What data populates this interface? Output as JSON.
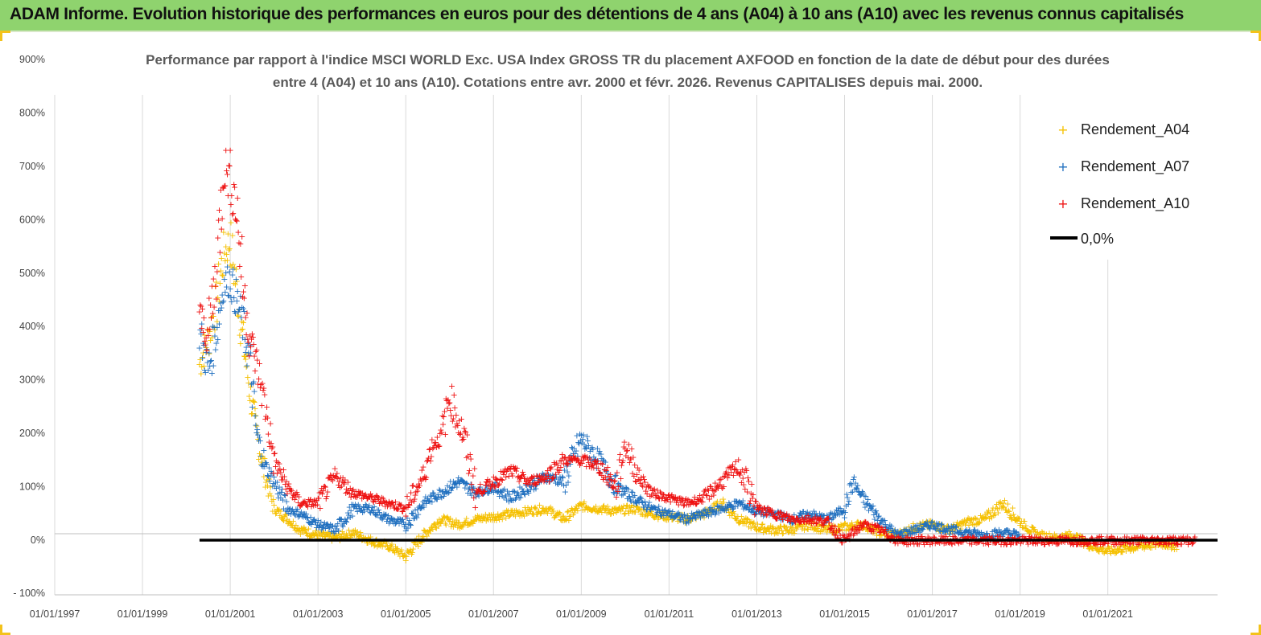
{
  "header": {
    "title": "ADAM Informe. Evolution historique des performances en euros pour des détentions de 4 ans (A04) à 10 ans (A10) avec les revenus connus capitalisés"
  },
  "colors": {
    "header_bg": "#8fd36e",
    "A04": "#f5c000",
    "A07": "#1f6fbf",
    "A10": "#ee1111",
    "zero_line": "#000000"
  },
  "chart_data": {
    "type": "scatter",
    "title_line1": "Performance par rapport à l'indice MSCI WORLD Exc. USA Index GROSS TR  du placement AXFOOD en fonction de la date de début pour des durées",
    "title_line2": "entre 4 (A04) et 10 ans (A10). Cotations entre avr. 2000 et févr. 2026. Revenus CAPITALISES depuis mai. 2000.",
    "y_ticks": [
      "900%",
      "800%",
      "700%",
      "600%",
      "500%",
      "400%",
      "300%",
      "200%",
      "100%",
      "0%",
      "- 100%"
    ],
    "x_ticks": [
      "01/01/1997",
      "01/01/1999",
      "01/01/2001",
      "01/01/2003",
      "01/01/2005",
      "01/01/2007",
      "01/01/2009",
      "01/01/2011",
      "01/01/2013",
      "01/01/2015",
      "01/01/2017",
      "01/01/2019",
      "01/01/2021"
    ],
    "ylim": [
      -100,
      900
    ],
    "xlim": [
      1997.0,
      2023.5
    ],
    "grid": "vertical",
    "legend_position": "top-right",
    "legend": [
      "Rendement_A04",
      "Rendement_A07",
      "Rendement_A10",
      "0,0%"
    ],
    "series": [
      {
        "name": "Rendement_A04",
        "color": "#f5c000",
        "x": [
          2000.3,
          2000.5,
          2000.7,
          2000.85,
          2001.0,
          2001.15,
          2001.3,
          2001.45,
          2001.6,
          2001.8,
          2002.0,
          2002.3,
          2002.6,
          2003.0,
          2003.4,
          2003.8,
          2004.2,
          2004.6,
          2005.0,
          2005.4,
          2005.8,
          2006.2,
          2006.6,
          2007.0,
          2007.4,
          2007.8,
          2008.2,
          2008.6,
          2009.0,
          2009.4,
          2009.8,
          2010.2,
          2010.6,
          2011.0,
          2011.4,
          2011.8,
          2012.2,
          2012.6,
          2013.0,
          2013.4,
          2013.8,
          2014.2,
          2014.6,
          2015.0,
          2015.4,
          2015.8,
          2016.2,
          2016.6,
          2017.0,
          2017.4,
          2017.8,
          2018.2,
          2018.6,
          2019.0,
          2019.4,
          2019.8,
          2020.2,
          2020.6,
          2021.0,
          2021.4,
          2021.8,
          2022.2,
          2022.6
        ],
        "y": [
          330,
          380,
          450,
          540,
          560,
          470,
          370,
          280,
          200,
          120,
          60,
          40,
          20,
          10,
          5,
          15,
          0,
          -10,
          -30,
          10,
          40,
          30,
          40,
          45,
          50,
          55,
          60,
          40,
          65,
          60,
          55,
          60,
          50,
          45,
          40,
          50,
          70,
          40,
          25,
          20,
          20,
          30,
          20,
          25,
          30,
          15,
          10,
          25,
          30,
          20,
          35,
          40,
          70,
          35,
          10,
          5,
          10,
          -10,
          -20,
          -15,
          -10,
          -5,
          -10
        ]
      },
      {
        "name": "Rendement_A07",
        "color": "#1f6fbf",
        "x": [
          2000.3,
          2000.5,
          2000.7,
          2000.85,
          2001.0,
          2001.15,
          2001.3,
          2001.45,
          2001.6,
          2001.8,
          2002.0,
          2002.3,
          2002.6,
          2003.0,
          2003.4,
          2003.8,
          2004.2,
          2004.6,
          2005.0,
          2005.4,
          2005.8,
          2006.2,
          2006.6,
          2007.0,
          2007.4,
          2007.8,
          2008.2,
          2008.6,
          2009.0,
          2009.4,
          2009.8,
          2010.2,
          2010.6,
          2011.0,
          2011.4,
          2011.8,
          2012.2,
          2012.6,
          2013.0,
          2013.4,
          2013.8,
          2014.2,
          2014.6,
          2015.0,
          2015.2,
          2015.4,
          2015.8,
          2016.2,
          2016.6,
          2017.0,
          2017.4,
          2017.8,
          2018.2,
          2018.6,
          2019.0
        ],
        "y": [
          390,
          320,
          400,
          480,
          490,
          450,
          400,
          330,
          200,
          140,
          110,
          60,
          50,
          30,
          20,
          60,
          60,
          40,
          30,
          70,
          90,
          110,
          90,
          100,
          80,
          100,
          120,
          110,
          190,
          150,
          100,
          80,
          60,
          50,
          40,
          50,
          60,
          70,
          55,
          50,
          40,
          50,
          40,
          60,
          110,
          80,
          40,
          10,
          20,
          30,
          20,
          15,
          10,
          15,
          10
        ]
      },
      {
        "name": "Rendement_A10",
        "color": "#ee1111",
        "x": [
          2000.3,
          2000.5,
          2000.7,
          2000.85,
          2001.0,
          2001.15,
          2001.3,
          2001.45,
          2001.6,
          2001.8,
          2002.0,
          2002.3,
          2002.6,
          2003.0,
          2003.4,
          2003.8,
          2004.2,
          2004.6,
          2005.0,
          2005.4,
          2005.6,
          2005.8,
          2006.0,
          2006.3,
          2006.6,
          2007.0,
          2007.4,
          2007.8,
          2008.2,
          2008.6,
          2009.0,
          2009.4,
          2009.8,
          2010.0,
          2010.3,
          2010.6,
          2011.0,
          2011.4,
          2011.8,
          2012.2,
          2012.6,
          2013.0,
          2013.4,
          2013.8,
          2014.2,
          2014.6,
          2015.0,
          2015.4,
          2015.8,
          2016.2,
          2016.6,
          2017.0,
          2018.0,
          2019.0,
          2020.0,
          2021.0,
          2022.0,
          2023.0
        ],
        "y": [
          420,
          380,
          520,
          700,
          680,
          620,
          470,
          380,
          330,
          250,
          150,
          100,
          70,
          70,
          120,
          90,
          80,
          70,
          60,
          120,
          180,
          190,
          270,
          200,
          90,
          110,
          130,
          110,
          120,
          150,
          150,
          140,
          100,
          180,
          120,
          90,
          80,
          70,
          80,
          110,
          140,
          60,
          50,
          40,
          40,
          35,
          0,
          30,
          20,
          0,
          0,
          0,
          0,
          0,
          0,
          0,
          0,
          0
        ]
      },
      {
        "name": "0,0%",
        "color": "#000000",
        "x": [
          2000.3,
          2023.5
        ],
        "y": [
          0,
          0
        ]
      }
    ]
  }
}
